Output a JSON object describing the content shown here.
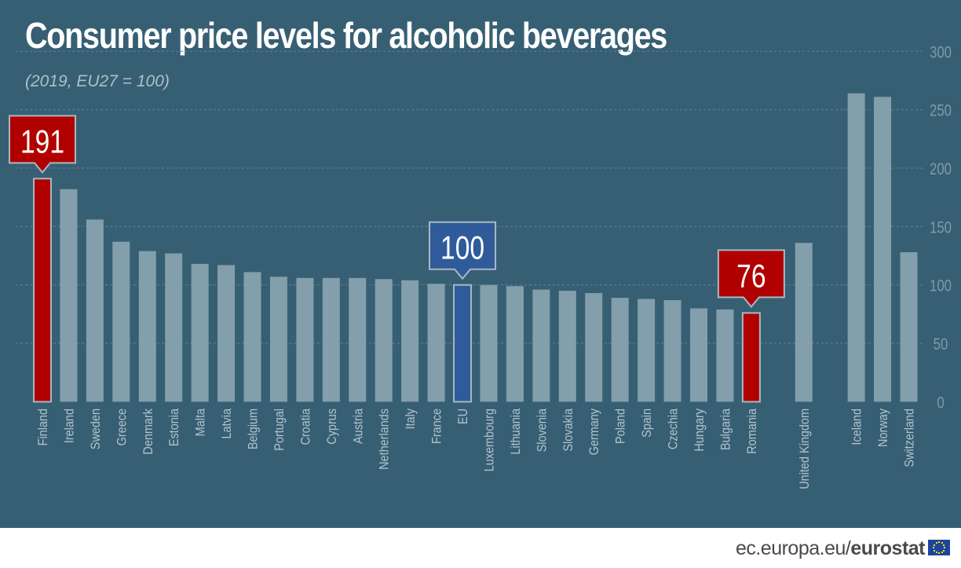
{
  "chart_data": {
    "type": "bar",
    "title": "Consumer price levels for alcoholic beverages",
    "subtitle": "(2019, EU27 = 100)",
    "categories": [
      "Finland",
      "Ireland",
      "Sweden",
      "Greece",
      "Denmark",
      "Estonia",
      "Malta",
      "Latvia",
      "Belgium",
      "Portugal",
      "Croatia",
      "Cyprus",
      "Austria",
      "Netherlands",
      "Italy",
      "France",
      "EU",
      "Luxembourg",
      "Lithuania",
      "Slovenia",
      "Slovakia",
      "Germany",
      "Poland",
      "Spain",
      "Czechia",
      "Hungary",
      "Bulgaria",
      "Romania",
      "United Kingdom",
      "Iceland",
      "Norway",
      "Switzerland"
    ],
    "values": [
      191,
      182,
      156,
      137,
      129,
      127,
      118,
      117,
      111,
      107,
      106,
      106,
      106,
      105,
      104,
      101,
      100,
      100,
      99,
      96,
      95,
      93,
      89,
      88,
      87,
      80,
      79,
      76,
      136,
      264,
      261,
      128
    ],
    "highlights": [
      {
        "category": "Finland",
        "label": "191",
        "color": "#b10000"
      },
      {
        "category": "EU",
        "label": "100",
        "color": "#2f5b9a"
      },
      {
        "category": "Romania",
        "label": "76",
        "color": "#b10000"
      }
    ],
    "ylim": [
      0,
      300
    ],
    "yticks": [
      0,
      50,
      100,
      150,
      200,
      250,
      300
    ],
    "grid": true,
    "axis_side": "right",
    "colors": {
      "bar": "#829fab",
      "background": "#375f74",
      "highlight_red": "#b10000",
      "highlight_blue": "#2f5b9a"
    }
  },
  "footer": {
    "site": "ec.europa.eu/",
    "brand": "eurostat"
  }
}
